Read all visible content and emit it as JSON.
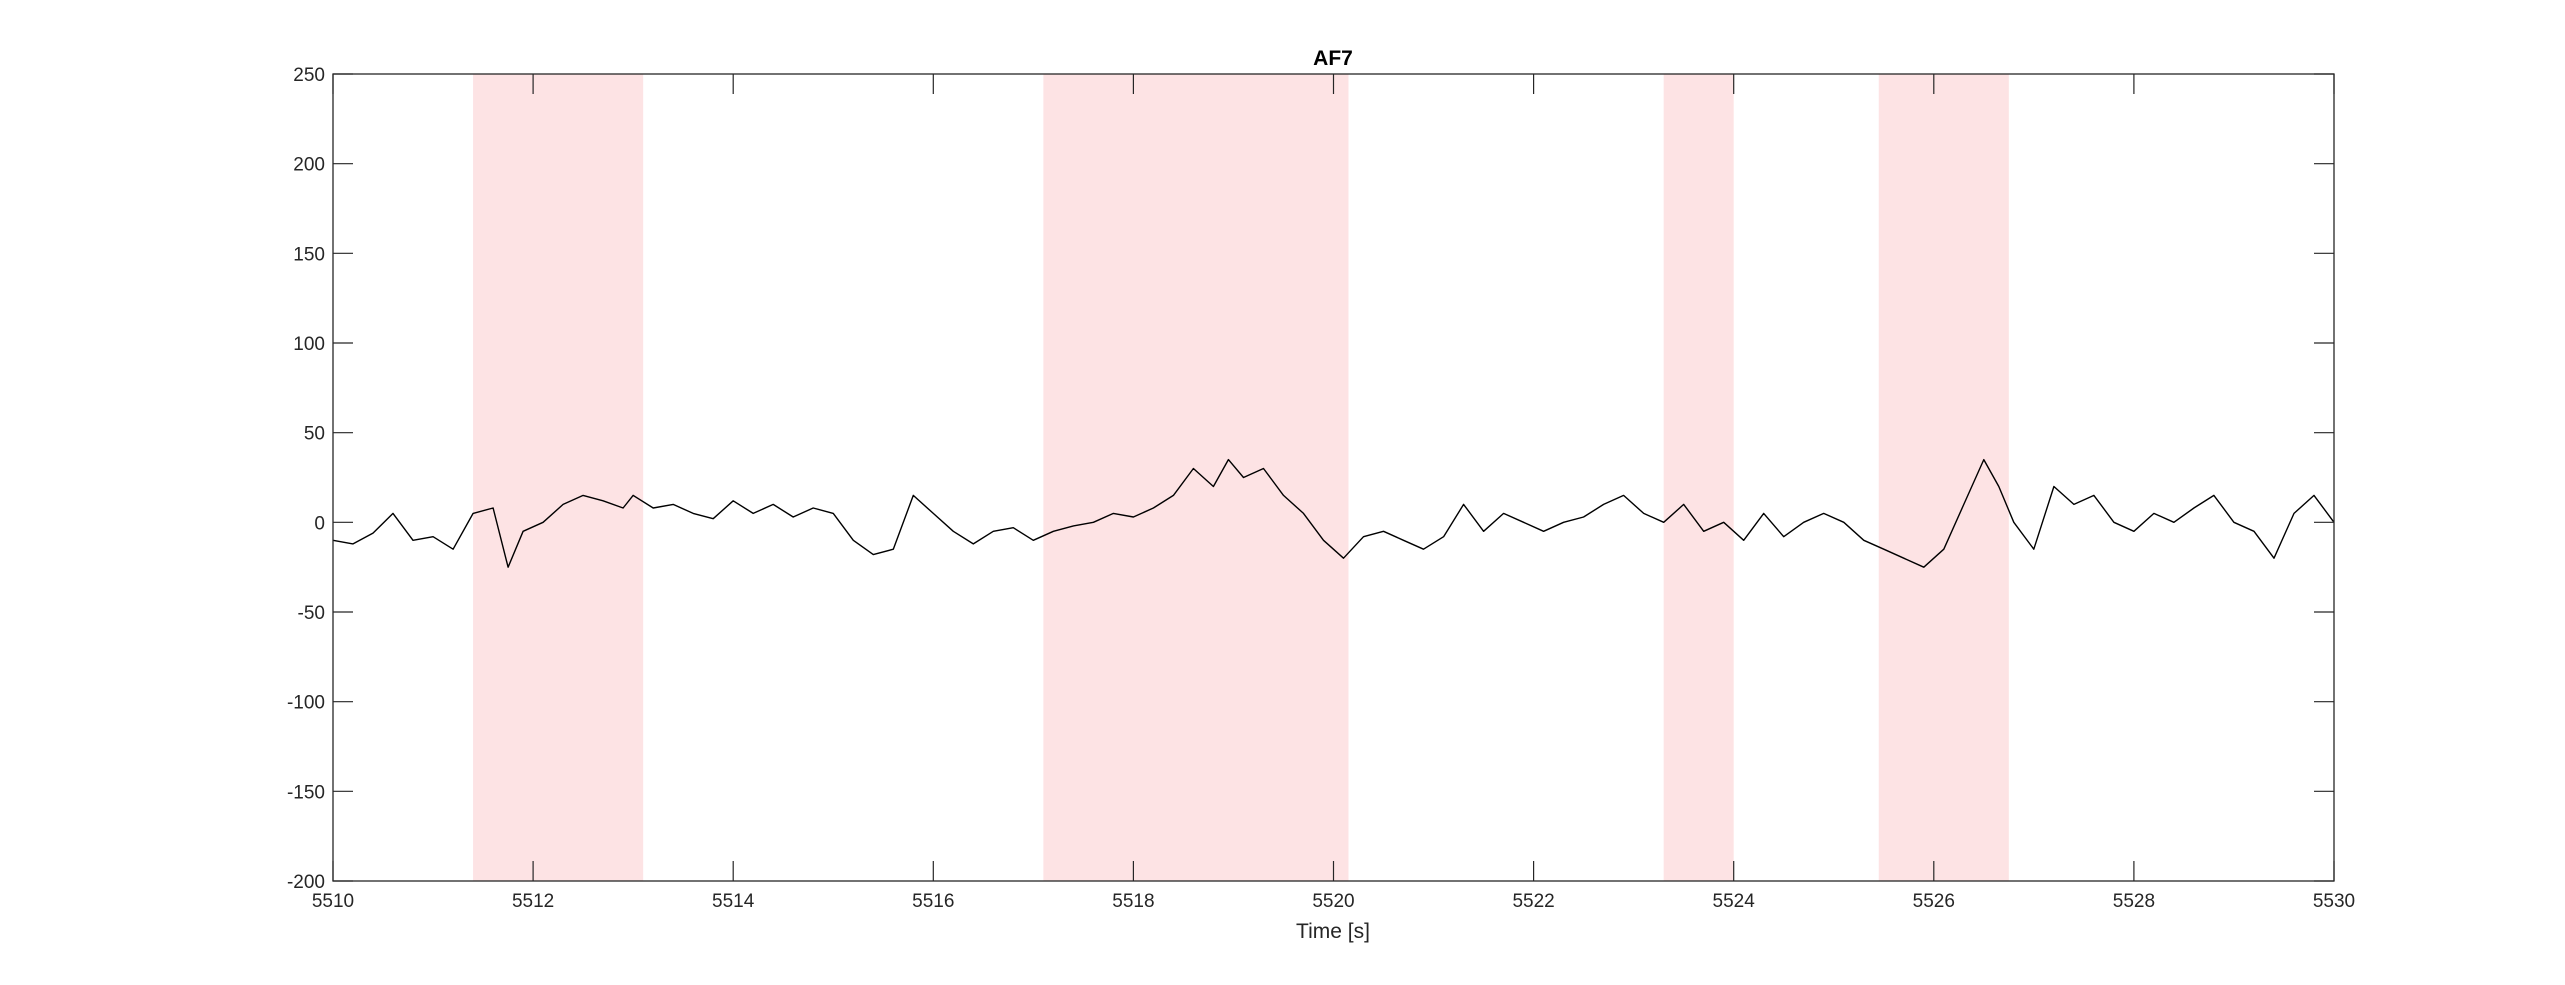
{
  "chart_data": {
    "type": "line",
    "title": "AF7",
    "xlabel": "Time [s]",
    "ylabel": "",
    "xlim": [
      5510,
      5530
    ],
    "ylim": [
      -200,
      250
    ],
    "xticks": [
      5510,
      5512,
      5514,
      5516,
      5518,
      5520,
      5522,
      5524,
      5526,
      5528,
      5530
    ],
    "yticks": [
      -200,
      -150,
      -100,
      -50,
      0,
      50,
      100,
      150,
      200,
      250
    ],
    "xtick_labels": [
      "5510",
      "5512",
      "5514",
      "5516",
      "5518",
      "5520",
      "5522",
      "5524",
      "5526",
      "5528",
      "5530"
    ],
    "ytick_labels": [
      "-200",
      "-150",
      "-100",
      "-50",
      "0",
      "50",
      "100",
      "150",
      "200",
      "250"
    ],
    "grid": false,
    "highlight_intervals": [
      {
        "start": 5511.4,
        "end": 5513.1
      },
      {
        "start": 5517.1,
        "end": 5520.15
      },
      {
        "start": 5523.3,
        "end": 5524.0
      },
      {
        "start": 5525.45,
        "end": 5526.75
      }
    ],
    "series": [
      {
        "color": "#000000",
        "shade_color": "#fde3e4",
        "x": [
          5510.0,
          5510.2,
          5510.4,
          5510.6,
          5510.8,
          5511.0,
          5511.2,
          5511.4,
          5511.6,
          5511.75,
          5511.9,
          5512.1,
          5512.3,
          5512.5,
          5512.7,
          5512.9,
          5513.0,
          5513.2,
          5513.4,
          5513.6,
          5513.8,
          5514.0,
          5514.2,
          5514.4,
          5514.6,
          5514.8,
          5515.0,
          5515.2,
          5515.4,
          5515.6,
          5515.8,
          5516.0,
          5516.2,
          5516.4,
          5516.6,
          5516.8,
          5517.0,
          5517.2,
          5517.4,
          5517.6,
          5517.8,
          5518.0,
          5518.2,
          5518.4,
          5518.6,
          5518.8,
          5518.95,
          5519.1,
          5519.3,
          5519.5,
          5519.7,
          5519.9,
          5520.1,
          5520.3,
          5520.5,
          5520.7,
          5520.9,
          5521.1,
          5521.3,
          5521.5,
          5521.7,
          5521.9,
          5522.1,
          5522.3,
          5522.5,
          5522.7,
          5522.9,
          5523.1,
          5523.3,
          5523.5,
          5523.7,
          5523.9,
          5524.1,
          5524.3,
          5524.5,
          5524.7,
          5524.9,
          5525.1,
          5525.3,
          5525.5,
          5525.7,
          5525.9,
          5526.1,
          5526.3,
          5526.5,
          5526.65,
          5526.8,
          5527.0,
          5527.2,
          5527.4,
          5527.6,
          5527.8,
          5528.0,
          5528.2,
          5528.4,
          5528.6,
          5528.8,
          5529.0,
          5529.2,
          5529.4,
          5529.6,
          5529.8,
          5530.0
        ],
        "y": [
          -10,
          -12,
          -6,
          5,
          -10,
          -8,
          -15,
          5,
          8,
          -25,
          -5,
          0,
          10,
          15,
          12,
          8,
          15,
          8,
          10,
          5,
          2,
          12,
          5,
          10,
          3,
          8,
          5,
          -10,
          -18,
          -15,
          15,
          5,
          -5,
          -12,
          -5,
          -3,
          -10,
          -5,
          -2,
          0,
          5,
          3,
          8,
          15,
          30,
          20,
          35,
          25,
          30,
          15,
          5,
          -10,
          -20,
          -8,
          -5,
          -10,
          -15,
          -8,
          10,
          -5,
          5,
          0,
          -5,
          0,
          3,
          10,
          15,
          5,
          0,
          10,
          -5,
          0,
          -10,
          5,
          -8,
          0,
          5,
          0,
          -10,
          -15,
          -20,
          -25,
          -15,
          10,
          35,
          20,
          0,
          -15,
          20,
          10,
          15,
          0,
          -5,
          5,
          0,
          8,
          15,
          0,
          -5,
          -20,
          5,
          15,
          0
        ]
      }
    ]
  }
}
